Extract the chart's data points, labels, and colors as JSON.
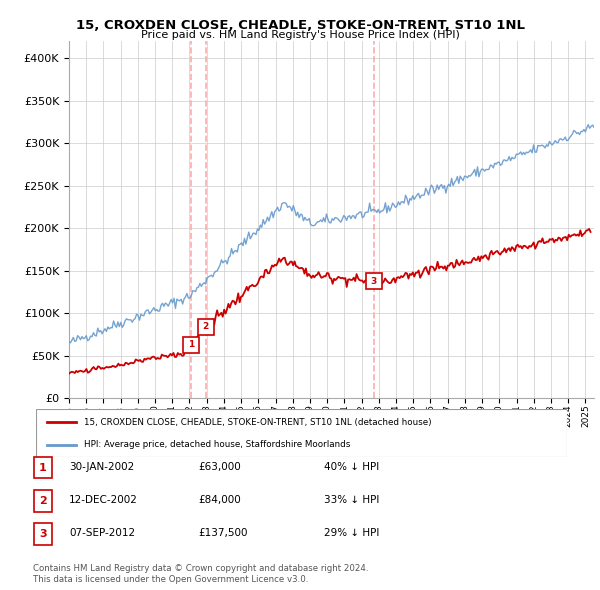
{
  "title": "15, CROXDEN CLOSE, CHEADLE, STOKE-ON-TRENT, ST10 1NL",
  "subtitle": "Price paid vs. HM Land Registry's House Price Index (HPI)",
  "legend_line1": "15, CROXDEN CLOSE, CHEADLE, STOKE-ON-TRENT, ST10 1NL (detached house)",
  "legend_line2": "HPI: Average price, detached house, Staffordshire Moorlands",
  "footer1": "Contains HM Land Registry data © Crown copyright and database right 2024.",
  "footer2": "This data is licensed under the Open Government Licence v3.0.",
  "transactions": [
    {
      "num": 1,
      "date": "30-JAN-2002",
      "price": "£63,000",
      "change": "40% ↓ HPI",
      "year": 2002.08,
      "value": 63000,
      "vline_x": 2002.08
    },
    {
      "num": 2,
      "date": "12-DEC-2002",
      "price": "£84,000",
      "change": "33% ↓ HPI",
      "year": 2002.95,
      "value": 84000,
      "vline_x": 2002.95
    },
    {
      "num": 3,
      "date": "07-SEP-2012",
      "price": "£137,500",
      "change": "29% ↓ HPI",
      "year": 2012.69,
      "value": 137500,
      "vline_x": 2012.69
    }
  ],
  "xlim": [
    1995,
    2025.5
  ],
  "ylim": [
    0,
    420000
  ],
  "yticks": [
    0,
    50000,
    100000,
    150000,
    200000,
    250000,
    300000,
    350000,
    400000
  ],
  "xtick_years": [
    1995,
    1996,
    1997,
    1998,
    1999,
    2000,
    2001,
    2002,
    2003,
    2004,
    2005,
    2006,
    2007,
    2008,
    2009,
    2010,
    2011,
    2012,
    2013,
    2014,
    2015,
    2016,
    2017,
    2018,
    2019,
    2020,
    2021,
    2022,
    2023,
    2024,
    2025
  ],
  "grid_color": "#cccccc",
  "bg_color": "#ffffff",
  "hpi_color": "#6699cc",
  "price_color": "#cc0000",
  "vline_color": "#ffaaaa",
  "title_color": "#000000",
  "marker_box_color": "#cc0000"
}
